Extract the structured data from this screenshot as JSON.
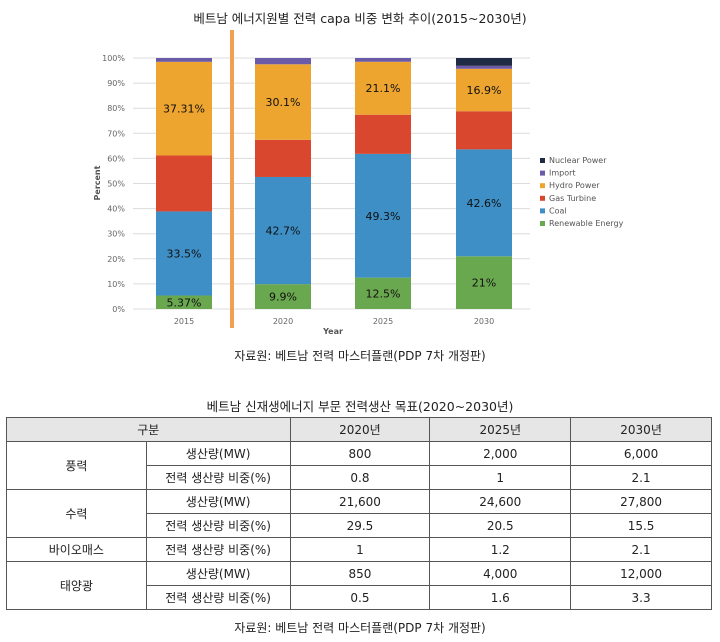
{
  "chart_data": {
    "type": "bar",
    "stacked": true,
    "title": "베트남 에너지원별 전력 capa 비중 변화 추이(2015~2030년)",
    "xlabel": "Year",
    "ylabel": "Percent",
    "ylim": [
      0,
      100
    ],
    "yticks": [
      "0%",
      "10%",
      "20%",
      "30%",
      "40%",
      "50%",
      "60%",
      "70%",
      "80%",
      "90%",
      "100%"
    ],
    "categories": [
      "2015",
      "2020",
      "2025",
      "2030"
    ],
    "series": [
      {
        "name": "Renewable Energy",
        "color": "#6aa84f",
        "values": [
          5.37,
          9.9,
          12.5,
          21
        ],
        "labels": [
          "5.37%",
          "9.9%",
          "12.5%",
          "21%"
        ]
      },
      {
        "name": "Coal",
        "color": "#3d8fc6",
        "values": [
          33.5,
          42.7,
          49.3,
          42.6
        ],
        "labels": [
          "33.5%",
          "42.7%",
          "49.3%",
          "42.6%"
        ]
      },
      {
        "name": "Gas Turbine",
        "color": "#d9472f",
        "values": [
          22.3,
          14.8,
          15.6,
          15.2
        ],
        "labels": [
          "",
          "",
          "",
          ""
        ]
      },
      {
        "name": "Hydro Power",
        "color": "#eda52f",
        "values": [
          37.31,
          30.1,
          21.1,
          16.9
        ],
        "labels": [
          "37.31%",
          "30.1%",
          "21.1%",
          "16.9%"
        ]
      },
      {
        "name": "Import",
        "color": "#6b5aa7",
        "values": [
          1.52,
          2.5,
          1.5,
          1.2
        ],
        "labels": [
          "",
          "",
          "",
          ""
        ]
      },
      {
        "name": "Nuclear Power",
        "color": "#1f2a44",
        "values": [
          0,
          0,
          0,
          3.1
        ],
        "labels": [
          "",
          "",
          "",
          ""
        ]
      }
    ],
    "legend_order": [
      "Nuclear Power",
      "Import",
      "Hydro Power",
      "Gas Turbine",
      "Coal",
      "Renewable Energy"
    ],
    "legend_position": "right",
    "divider_color": "#f0a050",
    "source": "자료원: 베트남 전력 마스터플랜(PDP 7차 개정판)"
  },
  "table": {
    "title": "베트남 신재생에너지 부문 전력생산 목표(2020~2030년)",
    "headers": [
      "구분",
      "2020년",
      "2025년",
      "2030년"
    ],
    "groups": [
      {
        "category": "풍력",
        "rows": [
          {
            "metric": "생산량(MW)",
            "values": [
              "800",
              "2,000",
              "6,000"
            ]
          },
          {
            "metric": "전력 생산량 비중(%)",
            "values": [
              "0.8",
              "1",
              "2.1"
            ]
          }
        ]
      },
      {
        "category": "수력",
        "rows": [
          {
            "metric": "생산량(MW)",
            "values": [
              "21,600",
              "24,600",
              "27,800"
            ]
          },
          {
            "metric": "전력 생산량 비중(%)",
            "values": [
              "29.5",
              "20.5",
              "15.5"
            ]
          }
        ]
      },
      {
        "category": "바이오매스",
        "rows": [
          {
            "metric": "전력 생산량 비중(%)",
            "values": [
              "1",
              "1.2",
              "2.1"
            ]
          }
        ]
      },
      {
        "category": "태양광",
        "rows": [
          {
            "metric": "생산량(MW)",
            "values": [
              "850",
              "4,000",
              "12,000"
            ]
          },
          {
            "metric": "전력 생산량 비중(%)",
            "values": [
              "0.5",
              "1.6",
              "3.3"
            ]
          }
        ]
      }
    ],
    "source": "자료원: 베트남 전력 마스터플랜(PDP 7차 개정판)"
  }
}
